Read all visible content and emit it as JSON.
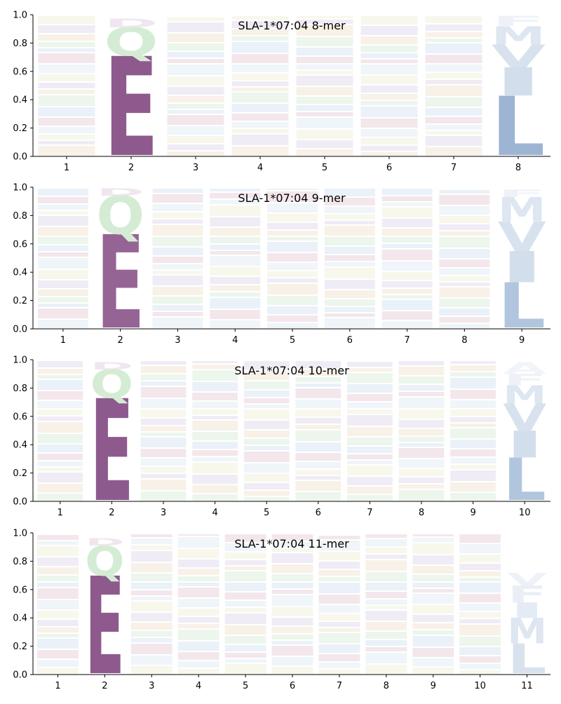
{
  "chart_data": [
    {
      "type": "sequence-logo",
      "title": "SLA-1*07:04 8-mer",
      "ylim": [
        0,
        1.0
      ],
      "yticks": [
        "0.0",
        "0.2",
        "0.4",
        "0.6",
        "0.8",
        "1.0"
      ],
      "positions": [
        "1",
        "2",
        "3",
        "4",
        "5",
        "6",
        "7",
        "8"
      ],
      "letters": [
        [],
        [
          {
            "letter": "E",
            "value": 0.7,
            "color": "#8e5a8e"
          },
          {
            "letter": "Q",
            "value": 0.2,
            "color": "#d4ecd4"
          },
          {
            "letter": "D",
            "value": 0.06,
            "color": "#efe6ef"
          }
        ],
        [],
        [],
        [],
        [],
        [],
        [
          {
            "letter": "L",
            "value": 0.42,
            "color": "#9db4d2"
          },
          {
            "letter": "I",
            "value": 0.2,
            "color": "#d2deeb"
          },
          {
            "letter": "V",
            "value": 0.16,
            "color": "#d8e2ee"
          },
          {
            "letter": "M",
            "value": 0.13,
            "color": "#dde6f1"
          },
          {
            "letter": "F",
            "value": 0.07,
            "color": "#eef2f8"
          }
        ]
      ]
    },
    {
      "type": "sequence-logo",
      "title": "SLA-1*07:04 9-mer",
      "ylim": [
        0,
        1.0
      ],
      "yticks": [
        "0.0",
        "0.2",
        "0.4",
        "0.6",
        "0.8",
        "1.0"
      ],
      "positions": [
        "1",
        "2",
        "3",
        "4",
        "5",
        "6",
        "7",
        "8",
        "9"
      ],
      "letters": [
        [],
        [
          {
            "letter": "E",
            "value": 0.66,
            "color": "#956495"
          },
          {
            "letter": "Q",
            "value": 0.27,
            "color": "#d4ecd4"
          },
          {
            "letter": "D",
            "value": 0.05,
            "color": "#efe6ef"
          }
        ],
        [],
        [],
        [],
        [],
        [],
        [],
        [
          {
            "letter": "L",
            "value": 0.32,
            "color": "#b2c5de"
          },
          {
            "letter": "I",
            "value": 0.22,
            "color": "#d2deeb"
          },
          {
            "letter": "V",
            "value": 0.21,
            "color": "#d8e2ee"
          },
          {
            "letter": "M",
            "value": 0.17,
            "color": "#dde6f1"
          },
          {
            "letter": "F",
            "value": 0.05,
            "color": "#eef2f8"
          }
        ]
      ]
    },
    {
      "type": "sequence-logo",
      "title": "SLA-1*07:04 10-mer",
      "ylim": [
        0,
        1.0
      ],
      "yticks": [
        "0.0",
        "0.2",
        "0.4",
        "0.6",
        "0.8",
        "1.0"
      ],
      "positions": [
        "1",
        "2",
        "3",
        "4",
        "5",
        "6",
        "7",
        "8",
        "9",
        "10"
      ],
      "letters": [
        [],
        [
          {
            "letter": "E",
            "value": 0.72,
            "color": "#8e5a8e"
          },
          {
            "letter": "Q",
            "value": 0.2,
            "color": "#d4ecd4"
          },
          {
            "letter": "D",
            "value": 0.05,
            "color": "#efe6ef"
          }
        ],
        [],
        [],
        [],
        [],
        [],
        [],
        [],
        [
          {
            "letter": "L",
            "value": 0.3,
            "color": "#b2c5de"
          },
          {
            "letter": "I",
            "value": 0.19,
            "color": "#d2deeb"
          },
          {
            "letter": "V",
            "value": 0.19,
            "color": "#d8e2ee"
          },
          {
            "letter": "M",
            "value": 0.13,
            "color": "#dde6f1"
          },
          {
            "letter": "F",
            "value": 0.08,
            "color": "#eef2f8"
          },
          {
            "letter": "A",
            "value": 0.08,
            "color": "#f1f4f9"
          }
        ]
      ]
    },
    {
      "type": "sequence-logo",
      "title": "SLA-1*07:04 11-mer",
      "ylim": [
        0,
        1.0
      ],
      "yticks": [
        "0.0",
        "0.2",
        "0.4",
        "0.6",
        "0.8",
        "1.0"
      ],
      "positions": [
        "1",
        "2",
        "3",
        "4",
        "5",
        "6",
        "7",
        "8",
        "9",
        "10",
        "11"
      ],
      "letters": [
        [],
        [
          {
            "letter": "E",
            "value": 0.69,
            "color": "#8e5a8e"
          },
          {
            "letter": "Q",
            "value": 0.21,
            "color": "#d4ecd4"
          },
          {
            "letter": "D",
            "value": 0.05,
            "color": "#efe6ef"
          }
        ],
        [],
        [],
        [],
        [],
        [],
        [],
        [],
        [],
        [
          {
            "letter": "L",
            "value": 0.21,
            "color": "#d8e2ee"
          },
          {
            "letter": "M",
            "value": 0.18,
            "color": "#dde6f1"
          },
          {
            "letter": "I",
            "value": 0.11,
            "color": "#e4ebf4"
          },
          {
            "letter": "F",
            "value": 0.12,
            "color": "#eaeff6"
          },
          {
            "letter": "V",
            "value": 0.09,
            "color": "#eef2f8"
          }
        ]
      ]
    }
  ]
}
